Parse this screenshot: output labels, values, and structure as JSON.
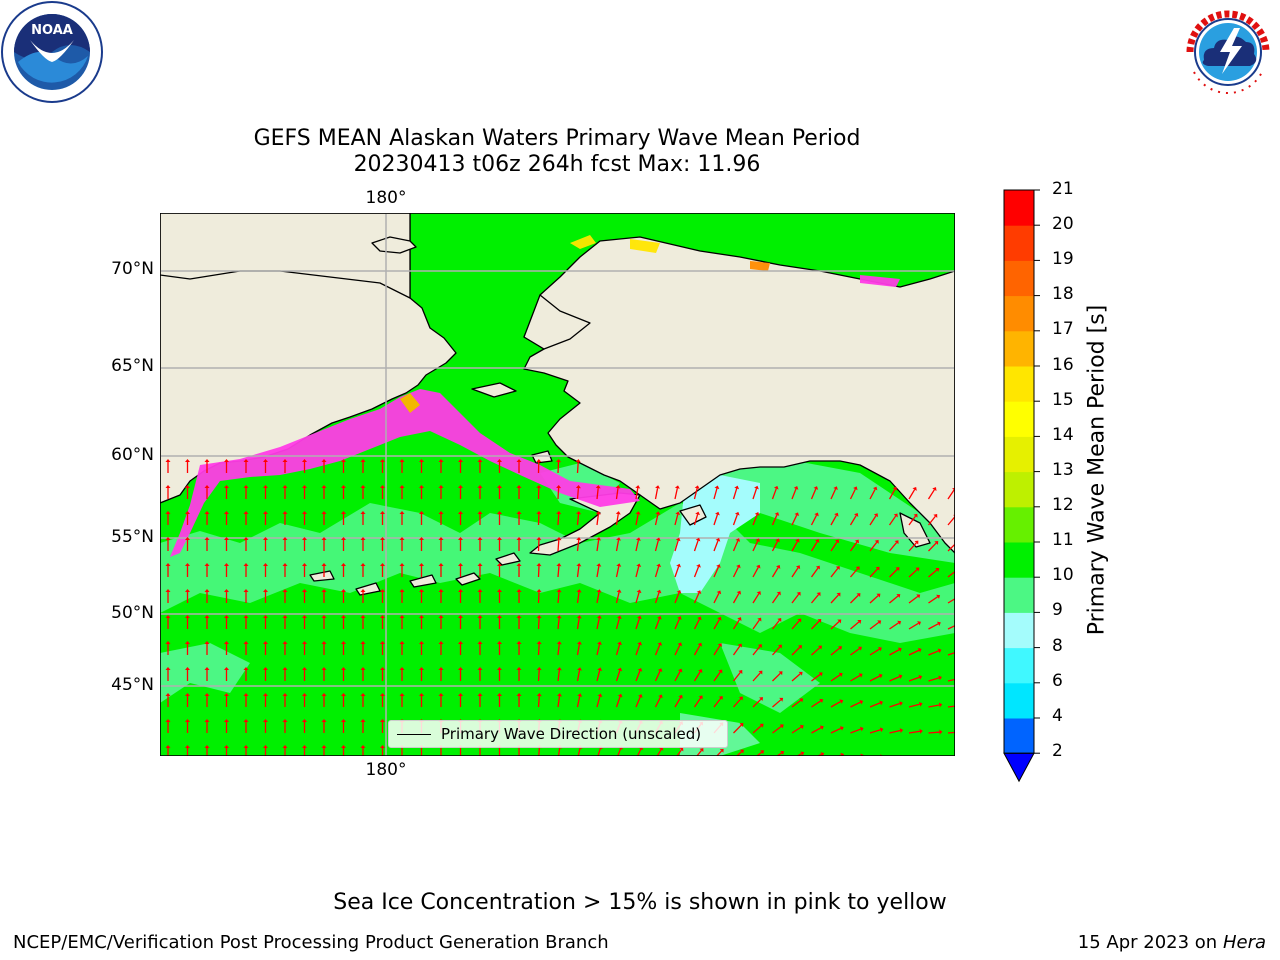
{
  "title": {
    "line1": "GEFS MEAN Alaskan Waters Primary Wave Mean Period",
    "line2": "20230413 t06z 264h fcst   Max: 11.96"
  },
  "logos": {
    "noara_name": "NOAA",
    "noaa_ring_text": "NATIONAL OCEANIC AND ATMOSPHERIC ADMINISTRATION · U.S. DEPARTMENT OF COMMERCE",
    "nws_ring_text": "NATIONAL WEATHER SERVICE"
  },
  "map": {
    "lat_labels": [
      "70°N",
      "65°N",
      "60°N",
      "55°N",
      "50°N",
      "45°N"
    ],
    "lon_label_top": "180°",
    "lon_label_bottom": "180°",
    "legend_label": "Primary Wave Direction (unscaled)",
    "colors": {
      "land": "#efecdc",
      "water_high": "#00f000",
      "water_mid": "#4cf784",
      "water_low": "#a4fcfc",
      "arrow": "#ff0000",
      "ice_pink": "#ff3ce6",
      "ice_yellow": "#ffe600",
      "grid": "#b0b0b0"
    }
  },
  "colorbar": {
    "title": "Primary Wave Mean Period [s]",
    "ticks": [
      "21",
      "20",
      "19",
      "18",
      "17",
      "16",
      "15",
      "14",
      "13",
      "12",
      "11",
      "10",
      "9",
      "8",
      "6",
      "4",
      "2"
    ],
    "colors": [
      "#0064ff",
      "#00e6ff",
      "#40f8ff",
      "#a4fcfc",
      "#4cf784",
      "#00f000",
      "#66f000",
      "#bef000",
      "#e6f000",
      "#ffff00",
      "#ffe600",
      "#ffb400",
      "#ff8c00",
      "#ff6400",
      "#ff3c00",
      "#ff0000"
    ],
    "extend_color": "#0000ff"
  },
  "note": "Sea Ice Concentration > 15% is shown in pink to yellow",
  "footer": {
    "left": "NCEP/EMC/Verification Post Processing Product Generation Branch",
    "right_date": "15 Apr 2023 on ",
    "right_host": "Hera"
  }
}
